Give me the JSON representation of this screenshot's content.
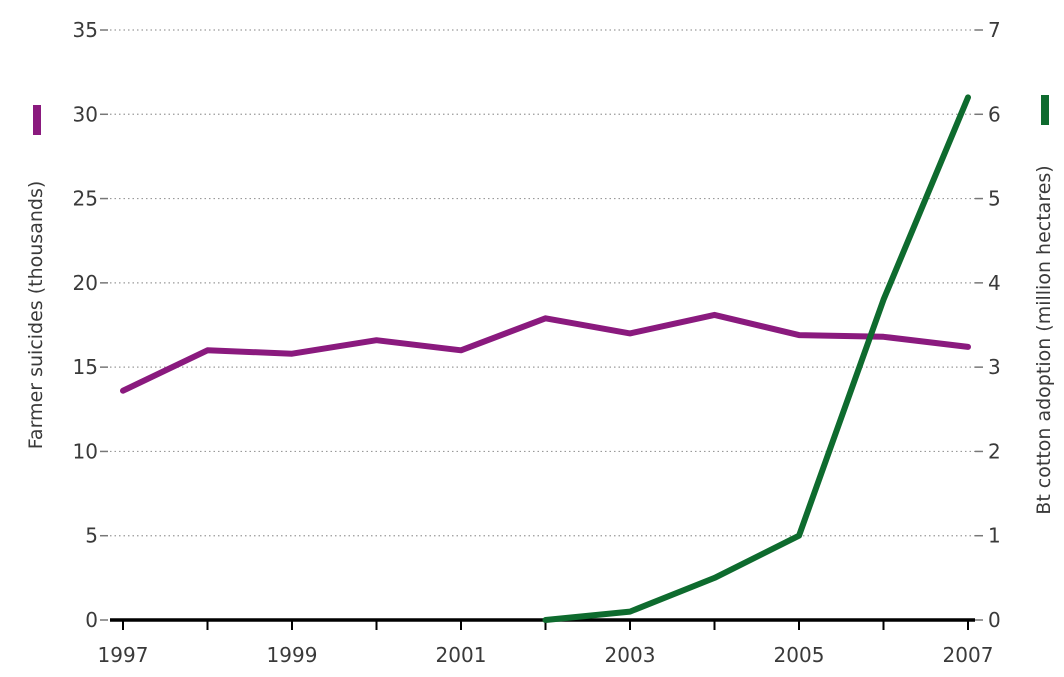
{
  "chart_data": {
    "type": "line",
    "x": [
      1997,
      1998,
      1999,
      2000,
      2001,
      2002,
      2003,
      2004,
      2005,
      2006,
      2007
    ],
    "x_tick_labels": [
      "1997",
      "1999",
      "2001",
      "2003",
      "2005",
      "2007"
    ],
    "ylabel_left": "Farmer suicides (thousands)",
    "ylabel_right": "Bt cotton adoption (million hectares)",
    "ylim_left": [
      0,
      35
    ],
    "ylim_right": [
      0,
      7
    ],
    "yticks_left": [
      "0",
      "5",
      "10",
      "15",
      "20",
      "25",
      "30",
      "35"
    ],
    "yticks_right": [
      "0",
      "1",
      "2",
      "3",
      "4",
      "5",
      "6",
      "7"
    ],
    "grid": true,
    "series": [
      {
        "axis": "left",
        "color": "#8a1a7e",
        "x": [
          1997,
          1998,
          1999,
          2000,
          2001,
          2002,
          2003,
          2004,
          2005,
          2006,
          2007
        ],
        "values": [
          13.6,
          16.0,
          15.8,
          16.6,
          16.0,
          17.9,
          17.0,
          18.1,
          16.9,
          16.8,
          16.2
        ]
      },
      {
        "axis": "right",
        "color": "#0e6b2e",
        "x": [
          2002,
          2003,
          2004,
          2005,
          2006,
          2007
        ],
        "values": [
          0.0,
          0.1,
          0.5,
          1.0,
          3.8,
          6.2
        ]
      }
    ]
  }
}
